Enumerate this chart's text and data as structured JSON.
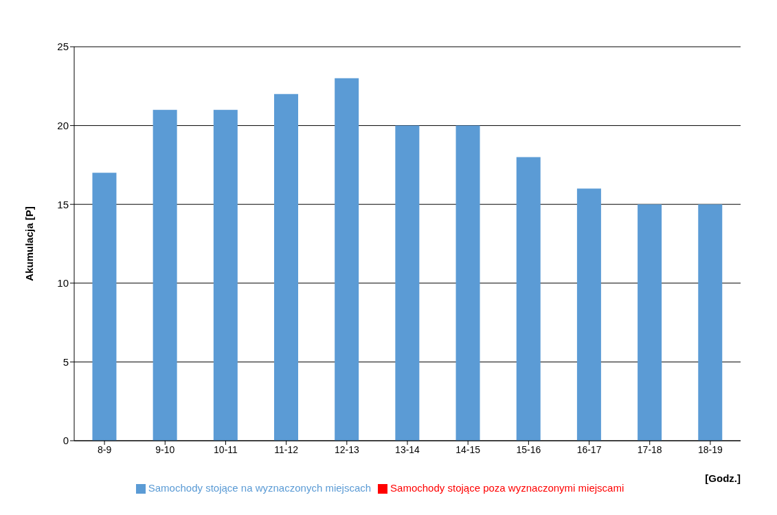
{
  "chart_data": {
    "type": "bar",
    "stacked": true,
    "xlabel": "[Godz.]",
    "ylabel": "Akumulacja [P]",
    "categories": [
      "8-9",
      "9-10",
      "10-11",
      "11-12",
      "12-13",
      "13-14",
      "14-15",
      "15-16",
      "16-17",
      "17-18",
      "18-19"
    ],
    "series": [
      {
        "name": "Samochody stojące na wyznaczonych miejscach",
        "color": "#5b9bd5",
        "values": [
          17,
          21,
          21,
          22,
          23,
          20,
          20,
          18,
          16,
          15,
          15
        ]
      },
      {
        "name": "Samochody stojące poza wyznaczonymi miejscami",
        "color": "#ff0000",
        "values": [
          0,
          0,
          0,
          0,
          0,
          0,
          0,
          0,
          0,
          0,
          0
        ]
      }
    ],
    "ylim": [
      0,
      25
    ],
    "yticks": [
      0,
      5,
      10,
      15,
      20,
      25
    ],
    "grid": "y",
    "legend": "bottom"
  }
}
